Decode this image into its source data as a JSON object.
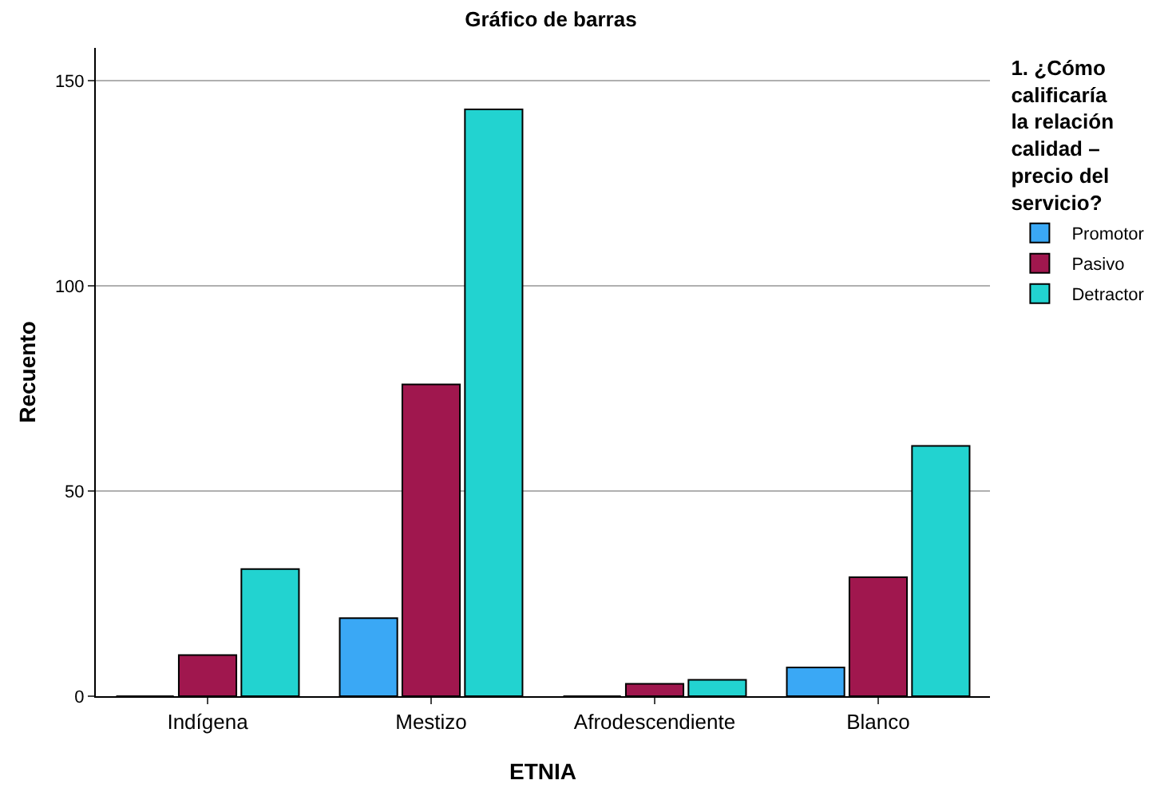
{
  "chart_data": {
    "type": "bar",
    "title": "Gráfico de barras",
    "xlabel": "ETNIA",
    "ylabel": "Recuento",
    "legend_title": "1. ¿Cómo calificaría la relación calidad – precio del servicio?",
    "categories": [
      "Indígena",
      "Mestizo",
      "Afrodescendiente",
      "Blanco"
    ],
    "series": [
      {
        "name": "Promotor",
        "color": "#3aa8f5",
        "values": [
          0,
          19,
          0,
          7
        ]
      },
      {
        "name": "Pasivo",
        "color": "#a0174e",
        "values": [
          10,
          76,
          3,
          29
        ]
      },
      {
        "name": "Detractor",
        "color": "#22d3d0",
        "values": [
          31,
          143,
          4,
          61
        ]
      }
    ],
    "ylim": [
      0,
      158
    ],
    "yticks": [
      0,
      50,
      100,
      150
    ],
    "grid": "y",
    "legend": "top right"
  }
}
